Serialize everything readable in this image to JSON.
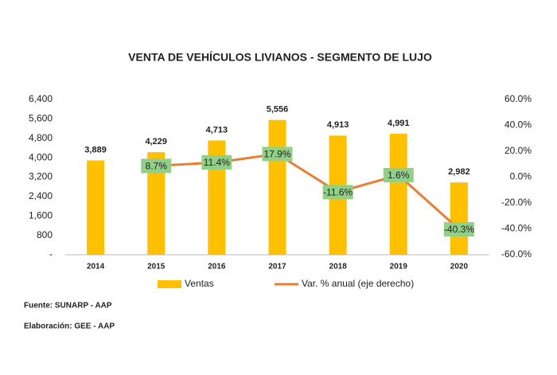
{
  "chart_data": {
    "type": "bar",
    "title": "VENTA DE VEHÍCULOS LIVIANOS - SEGMENTO DE LUJO",
    "categories": [
      "2014",
      "2015",
      "2016",
      "2017",
      "2018",
      "2019",
      "2020"
    ],
    "series": [
      {
        "name": "Ventas",
        "type": "bar",
        "color": "#FFC000",
        "values": [
          3889,
          4229,
          4713,
          5556,
          4913,
          4991,
          2982
        ],
        "value_labels": [
          "3,889",
          "4,229",
          "4,713",
          "5,556",
          "4,913",
          "4,991",
          "2,982"
        ]
      },
      {
        "name": "Var. % anual (eje derecho)",
        "type": "line",
        "axis": "y2",
        "color": "#ED7D31",
        "label_color": "#92D08A",
        "values": [
          null,
          8.7,
          11.4,
          17.9,
          -11.6,
          1.6,
          -40.3
        ],
        "value_labels": [
          null,
          "8.7%",
          "11.4%",
          "17.9%",
          "-11.6%",
          "1.6%",
          "-40.3%"
        ]
      }
    ],
    "ylim": [
      0,
      6400
    ],
    "yticks": [
      {
        "value": 0,
        "label": "-"
      },
      800,
      {
        "value": 1600,
        "label": "1,600"
      },
      {
        "value": 2400,
        "label": "2,400"
      },
      {
        "value": 3200,
        "label": "3,200"
      },
      {
        "value": 4000,
        "label": "4,000"
      },
      {
        "value": 4800,
        "label": "4,800"
      },
      {
        "value": 5600,
        "label": "5,600"
      },
      {
        "value": 6400,
        "label": "6,400"
      }
    ],
    "y2lim": [
      -60,
      60
    ],
    "y2ticks": [
      {
        "value": -60,
        "label": "-60.0%"
      },
      {
        "value": -40,
        "label": "-40.0%"
      },
      {
        "value": -20,
        "label": "-20.0%"
      },
      {
        "value": 0,
        "label": "0.0%"
      },
      {
        "value": 20,
        "label": "20.0%"
      },
      {
        "value": 40,
        "label": "40.0%"
      },
      {
        "value": 60,
        "label": "60.0%"
      }
    ],
    "grid": false,
    "legend": "bottom",
    "notes": [
      "Fuente: SUNARP - AAP",
      "Elaboración: GEE - AAP"
    ]
  }
}
